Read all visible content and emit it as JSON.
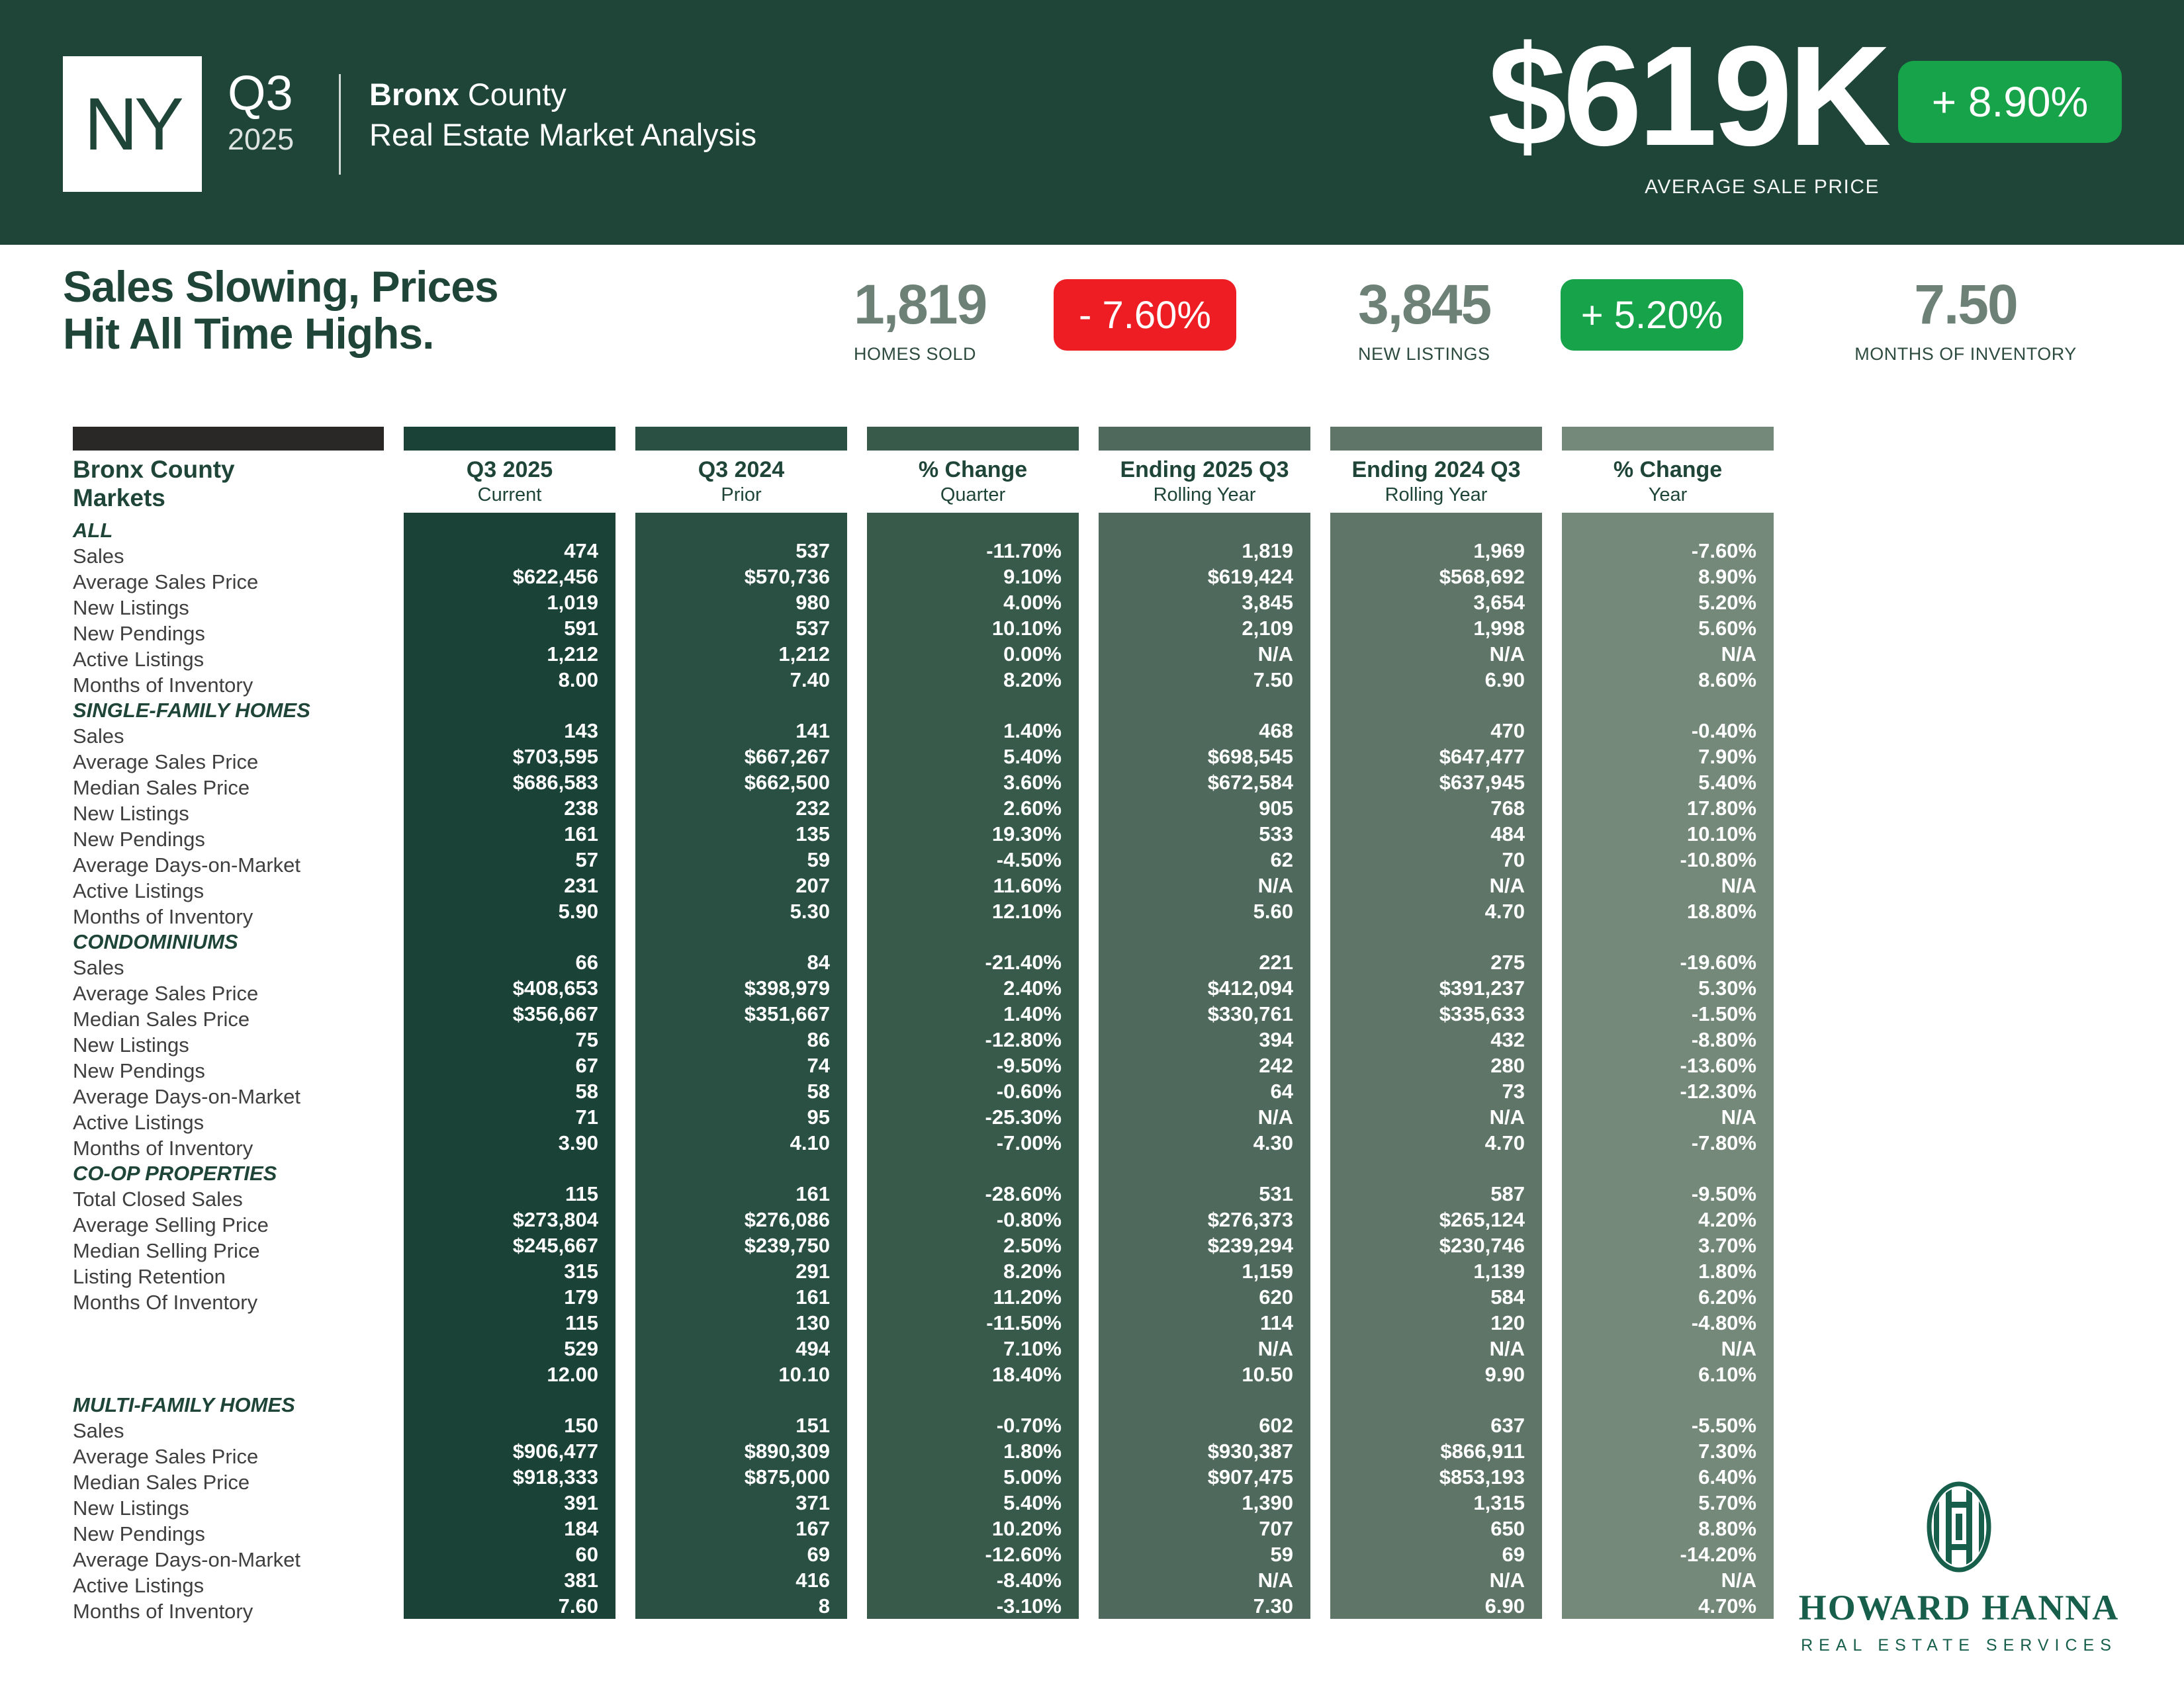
{
  "colors": {
    "band_green": "#1e4538",
    "label_bar": "#2a2727",
    "stat_number": "#6e8177",
    "negative_badge": "#ee1c23",
    "positive_badge": "#16a34a",
    "logo_green": "#175f4b"
  },
  "header": {
    "state": "NY",
    "quarter": "Q3",
    "year": "2025",
    "county_bold": "Bronx",
    "county_rest": "County",
    "subtitle": "Real Estate Market Analysis",
    "price": "$619K",
    "price_badge": "+ 8.90%",
    "price_label": "AVERAGE SALE PRICE"
  },
  "headline": {
    "line1": "Sales Slowing, Prices",
    "line2": "Hit All Time Highs."
  },
  "stats": [
    {
      "value": "1,819",
      "label": "HOMES SOLD",
      "badge": "- 7.60%",
      "badge_type": "negative"
    },
    {
      "value": "3,845",
      "label": "NEW LISTINGS",
      "badge": "+ 5.20%",
      "badge_type": "positive"
    },
    {
      "value": "7.50",
      "label": "MONTHS OF INVENTORY",
      "badge": "",
      "badge_type": "none"
    }
  ],
  "table": {
    "title_line1": "Bronx County",
    "title_line2": "Markets",
    "label_bar_color": "#2a2727",
    "column_colors": [
      "#1b4236",
      "#2a5044",
      "#375a4b",
      "#4f6a5c",
      "#5e7568",
      "#75897b"
    ],
    "columns": [
      {
        "label": "Q3 2025",
        "sub": "Current"
      },
      {
        "label": "Q3 2024",
        "sub": "Prior"
      },
      {
        "label": "% Change",
        "sub": "Quarter"
      },
      {
        "label": "Ending 2025 Q3",
        "sub": "Rolling Year"
      },
      {
        "label": "Ending 2024 Q3",
        "sub": "Rolling Year"
      },
      {
        "label": "% Change",
        "sub": "Year"
      }
    ],
    "sections": [
      {
        "name": "ALL",
        "rows": [
          {
            "label": "Sales",
            "values": [
              "474",
              "537",
              "-11.70%",
              "1,819",
              "1,969",
              "-7.60%"
            ]
          },
          {
            "label": "Average Sales Price",
            "values": [
              "$622,456",
              "$570,736",
              "9.10%",
              "$619,424",
              "$568,692",
              "8.90%"
            ]
          },
          {
            "label": "New Listings",
            "values": [
              "1,019",
              "980",
              "4.00%",
              "3,845",
              "3,654",
              "5.20%"
            ]
          },
          {
            "label": "New Pendings",
            "values": [
              "591",
              "537",
              "10.10%",
              "2,109",
              "1,998",
              "5.60%"
            ]
          },
          {
            "label": "Active Listings",
            "values": [
              "1,212",
              "1,212",
              "0.00%",
              "N/A",
              "N/A",
              "N/A"
            ]
          },
          {
            "label": "Months of Inventory",
            "values": [
              "8.00",
              "7.40",
              "8.20%",
              "7.50",
              "6.90",
              "8.60%"
            ]
          }
        ]
      },
      {
        "name": "SINGLE-FAMILY HOMES",
        "rows": [
          {
            "label": "Sales",
            "values": [
              "143",
              "141",
              "1.40%",
              "468",
              "470",
              "-0.40%"
            ]
          },
          {
            "label": "Average Sales Price",
            "values": [
              "$703,595",
              "$667,267",
              "5.40%",
              "$698,545",
              "$647,477",
              "7.90%"
            ]
          },
          {
            "label": "Median Sales Price",
            "values": [
              "$686,583",
              "$662,500",
              "3.60%",
              "$672,584",
              "$637,945",
              "5.40%"
            ]
          },
          {
            "label": "New Listings",
            "values": [
              "238",
              "232",
              "2.60%",
              "905",
              "768",
              "17.80%"
            ]
          },
          {
            "label": "New Pendings",
            "values": [
              "161",
              "135",
              "19.30%",
              "533",
              "484",
              "10.10%"
            ]
          },
          {
            "label": "Average Days-on-Market",
            "values": [
              "57",
              "59",
              "-4.50%",
              "62",
              "70",
              "-10.80%"
            ]
          },
          {
            "label": "Active Listings",
            "values": [
              "231",
              "207",
              "11.60%",
              "N/A",
              "N/A",
              "N/A"
            ]
          },
          {
            "label": "Months of Inventory",
            "values": [
              "5.90",
              "5.30",
              "12.10%",
              "5.60",
              "4.70",
              "18.80%"
            ]
          }
        ]
      },
      {
        "name": "CONDOMINIUMS",
        "rows": [
          {
            "label": "Sales",
            "values": [
              "66",
              "84",
              "-21.40%",
              "221",
              "275",
              "-19.60%"
            ]
          },
          {
            "label": "Average Sales Price",
            "values": [
              "$408,653",
              "$398,979",
              "2.40%",
              "$412,094",
              "$391,237",
              "5.30%"
            ]
          },
          {
            "label": "Median Sales Price",
            "values": [
              "$356,667",
              "$351,667",
              "1.40%",
              "$330,761",
              "$335,633",
              "-1.50%"
            ]
          },
          {
            "label": "New Listings",
            "values": [
              "75",
              "86",
              "-12.80%",
              "394",
              "432",
              "-8.80%"
            ]
          },
          {
            "label": "New Pendings",
            "values": [
              "67",
              "74",
              "-9.50%",
              "242",
              "280",
              "-13.60%"
            ]
          },
          {
            "label": "Average Days-on-Market",
            "values": [
              "58",
              "58",
              "-0.60%",
              "64",
              "73",
              "-12.30%"
            ]
          },
          {
            "label": "Active Listings",
            "values": [
              "71",
              "95",
              "-25.30%",
              "N/A",
              "N/A",
              "N/A"
            ]
          },
          {
            "label": "Months of Inventory",
            "values": [
              "3.90",
              "4.10",
              "-7.00%",
              "4.30",
              "4.70",
              "-7.80%"
            ]
          }
        ]
      },
      {
        "name": "CO-OP PROPERTIES",
        "rows": [
          {
            "label": "Total Closed Sales",
            "values": [
              "115",
              "161",
              "-28.60%",
              "531",
              "587",
              "-9.50%"
            ]
          },
          {
            "label": "Average Selling Price",
            "values": [
              "$273,804",
              "$276,086",
              "-0.80%",
              "$276,373",
              "$265,124",
              "4.20%"
            ]
          },
          {
            "label": "Median Selling Price",
            "values": [
              "$245,667",
              "$239,750",
              "2.50%",
              "$239,294",
              "$230,746",
              "3.70%"
            ]
          },
          {
            "label": "Listing Retention",
            "values": [
              "315",
              "291",
              "8.20%",
              "1,159",
              "1,139",
              "1.80%"
            ]
          },
          {
            "label": "Months Of Inventory",
            "values": [
              "179",
              "161",
              "11.20%",
              "620",
              "584",
              "6.20%"
            ]
          },
          {
            "label": "",
            "values": [
              "115",
              "130",
              "-11.50%",
              "114",
              "120",
              "-4.80%"
            ]
          },
          {
            "label": "",
            "values": [
              "529",
              "494",
              "7.10%",
              "N/A",
              "N/A",
              "N/A"
            ]
          },
          {
            "label": "",
            "values": [
              "12.00",
              "10.10",
              "18.40%",
              "10.50",
              "9.90",
              "6.10%"
            ]
          }
        ]
      },
      {
        "name": "MULTI-FAMILY HOMES",
        "rows": [
          {
            "label": "Sales",
            "values": [
              "150",
              "151",
              "-0.70%",
              "602",
              "637",
              "-5.50%"
            ]
          },
          {
            "label": "Average Sales Price",
            "values": [
              "$906,477",
              "$890,309",
              "1.80%",
              "$930,387",
              "$866,911",
              "7.30%"
            ]
          },
          {
            "label": "Median Sales Price",
            "values": [
              "$918,333",
              "$875,000",
              "5.00%",
              "$907,475",
              "$853,193",
              "6.40%"
            ]
          },
          {
            "label": "New Listings",
            "values": [
              "391",
              "371",
              "5.40%",
              "1,390",
              "1,315",
              "5.70%"
            ]
          },
          {
            "label": "New Pendings",
            "values": [
              "184",
              "167",
              "10.20%",
              "707",
              "650",
              "8.80%"
            ]
          },
          {
            "label": "Average Days-on-Market",
            "values": [
              "60",
              "69",
              "-12.60%",
              "59",
              "69",
              "-14.20%"
            ]
          },
          {
            "label": "Active Listings",
            "values": [
              "381",
              "416",
              "-8.40%",
              "N/A",
              "N/A",
              "N/A"
            ]
          },
          {
            "label": "Months of Inventory",
            "values": [
              "7.60",
              "8",
              "-3.10%",
              "7.30",
              "6.90",
              "4.70%"
            ]
          }
        ]
      }
    ]
  },
  "footer": {
    "brand": "HOWARD HANNA",
    "tagline": "REAL ESTATE SERVICES"
  }
}
